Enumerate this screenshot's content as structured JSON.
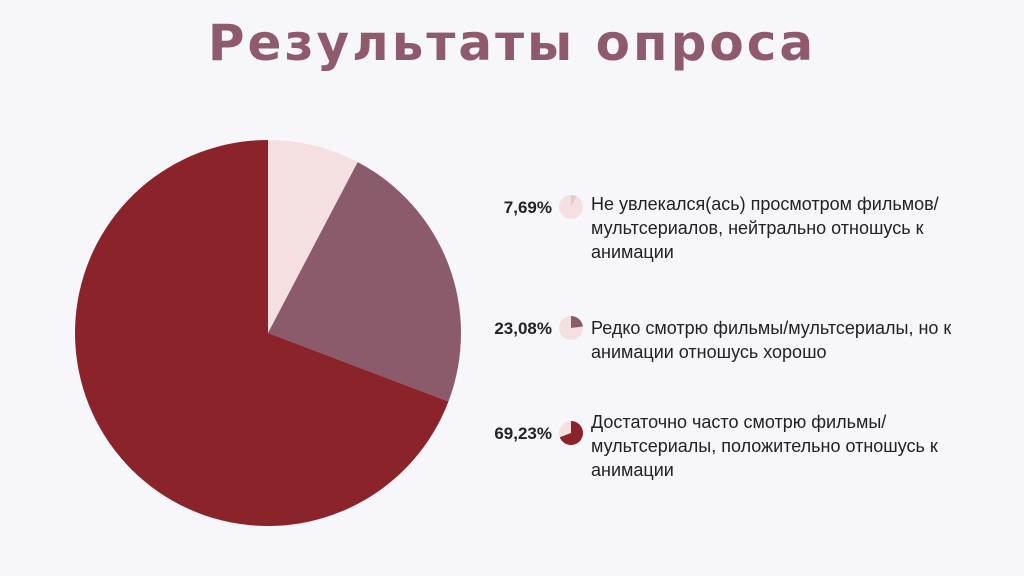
{
  "title": "Результаты опроса",
  "colors": {
    "background": "#f6f6fb",
    "title": "#8e5a6c",
    "slice_1": "#f5e0e1",
    "slice_2": "#8c5b6b",
    "slice_3": "#8b232b"
  },
  "chart_data": {
    "type": "pie",
    "title": "Результаты опроса",
    "slices": [
      {
        "value": 7.69,
        "label": "7,69%",
        "description": "Не увлекался(ась) просмотром фильмов/ мультсериалов, нейтрально отношусь к анимации",
        "color": "#f5e0e1"
      },
      {
        "value": 23.08,
        "label": "23,08%",
        "description": "Редко смотрю фильмы/мультсериалы, но к анимации отношусь хорошо",
        "color": "#8c5b6b"
      },
      {
        "value": 69.23,
        "label": "69,23%",
        "description": "Достаточно часто смотрю фильмы/ мультсериалы, положительно отношусь к анимации",
        "color": "#8b232b"
      }
    ],
    "legend_position": "right"
  }
}
